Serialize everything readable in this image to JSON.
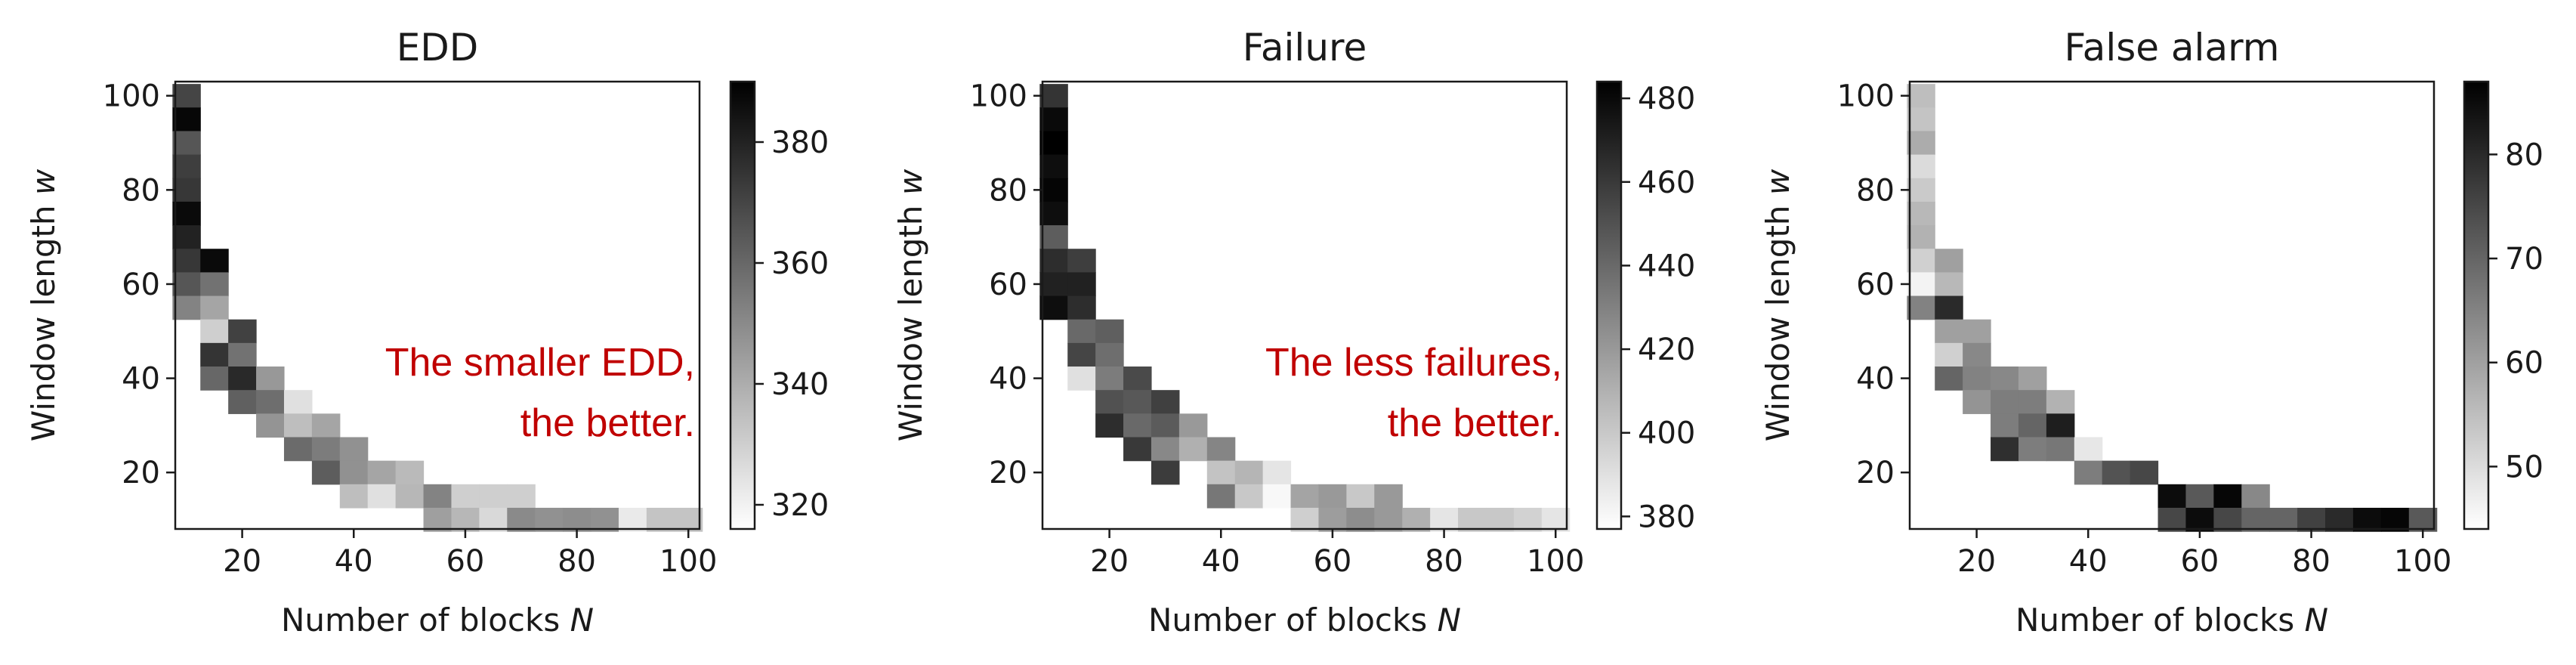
{
  "figure": {
    "colormap": "gray_r",
    "text_color": "#1a1a1a",
    "annotation_color": "#c00000"
  },
  "chart_data": [
    {
      "type": "heatmap",
      "title": "EDD",
      "xlabel": "Number of blocks N",
      "ylabel": "Window length w",
      "xlim": [
        8,
        102
      ],
      "ylim": [
        8,
        103
      ],
      "xticks": [
        20,
        40,
        60,
        80,
        100
      ],
      "yticks": [
        20,
        40,
        60,
        80,
        100
      ],
      "cell_size": 5,
      "colorbar": {
        "min": 316,
        "max": 390,
        "ticks": [
          320,
          340,
          360,
          380
        ]
      },
      "annotation": [
        "The smaller EDD,",
        "the better."
      ],
      "cells": [
        [
          10,
          100,
          370
        ],
        [
          10,
          95,
          388
        ],
        [
          10,
          90,
          365
        ],
        [
          10,
          85,
          372
        ],
        [
          10,
          80,
          374
        ],
        [
          10,
          75,
          387
        ],
        [
          10,
          70,
          380
        ],
        [
          10,
          65,
          374
        ],
        [
          10,
          60,
          365
        ],
        [
          15,
          65,
          387
        ],
        [
          10,
          55,
          352
        ],
        [
          15,
          60,
          357
        ],
        [
          15,
          55,
          342
        ],
        [
          15,
          50,
          330
        ],
        [
          15,
          45,
          375
        ],
        [
          20,
          50,
          371
        ],
        [
          15,
          40,
          360
        ],
        [
          20,
          45,
          357
        ],
        [
          20,
          40,
          378
        ],
        [
          25,
          40,
          346
        ],
        [
          20,
          35,
          362
        ],
        [
          25,
          35,
          358
        ],
        [
          30,
          35,
          325
        ],
        [
          25,
          30,
          347
        ],
        [
          30,
          30,
          335
        ],
        [
          35,
          30,
          342
        ],
        [
          30,
          25,
          359
        ],
        [
          35,
          25,
          354
        ],
        [
          40,
          25,
          348
        ],
        [
          35,
          20,
          363
        ],
        [
          40,
          20,
          348
        ],
        [
          45,
          20,
          342
        ],
        [
          50,
          20,
          336
        ],
        [
          40,
          15,
          335
        ],
        [
          45,
          15,
          325
        ],
        [
          50,
          15,
          337
        ],
        [
          55,
          15,
          352
        ],
        [
          60,
          15,
          330
        ],
        [
          65,
          15,
          330
        ],
        [
          70,
          15,
          330
        ],
        [
          55,
          10,
          344
        ],
        [
          60,
          10,
          337
        ],
        [
          65,
          10,
          327
        ],
        [
          70,
          10,
          350
        ],
        [
          75,
          10,
          348
        ],
        [
          80,
          10,
          349
        ],
        [
          85,
          10,
          348
        ],
        [
          90,
          10,
          322
        ],
        [
          95,
          10,
          333
        ],
        [
          100,
          10,
          333
        ]
      ]
    },
    {
      "type": "heatmap",
      "title": "Failure",
      "xlabel": "Number of blocks N",
      "ylabel": "Window length w",
      "xlim": [
        8,
        102
      ],
      "ylim": [
        8,
        103
      ],
      "xticks": [
        20,
        40,
        60,
        80,
        100
      ],
      "yticks": [
        20,
        40,
        60,
        80,
        100
      ],
      "cell_size": 5,
      "colorbar": {
        "min": 377,
        "max": 484,
        "ticks": [
          380,
          400,
          420,
          440,
          460,
          480
        ]
      },
      "annotation": [
        "The less failures,",
        "the better."
      ],
      "cells": [
        [
          10,
          100,
          462
        ],
        [
          10,
          95,
          480
        ],
        [
          10,
          90,
          484
        ],
        [
          10,
          85,
          478
        ],
        [
          10,
          80,
          482
        ],
        [
          10,
          75,
          478
        ],
        [
          10,
          70,
          445
        ],
        [
          10,
          65,
          465
        ],
        [
          10,
          60,
          470
        ],
        [
          15,
          65,
          458
        ],
        [
          10,
          55,
          478
        ],
        [
          15,
          60,
          470
        ],
        [
          15,
          55,
          465
        ],
        [
          15,
          50,
          440
        ],
        [
          15,
          45,
          455
        ],
        [
          20,
          50,
          444
        ],
        [
          15,
          40,
          390
        ],
        [
          20,
          45,
          438
        ],
        [
          20,
          40,
          432
        ],
        [
          25,
          40,
          453
        ],
        [
          20,
          35,
          450
        ],
        [
          25,
          35,
          447
        ],
        [
          30,
          35,
          457
        ],
        [
          20,
          30,
          465
        ],
        [
          25,
          30,
          440
        ],
        [
          30,
          30,
          446
        ],
        [
          35,
          30,
          420
        ],
        [
          25,
          25,
          460
        ],
        [
          30,
          25,
          427
        ],
        [
          35,
          25,
          410
        ],
        [
          40,
          25,
          428
        ],
        [
          30,
          20,
          459
        ],
        [
          40,
          20,
          402
        ],
        [
          45,
          20,
          408
        ],
        [
          50,
          20,
          388
        ],
        [
          40,
          15,
          434
        ],
        [
          45,
          15,
          400
        ],
        [
          50,
          15,
          380
        ],
        [
          55,
          15,
          415
        ],
        [
          60,
          15,
          420
        ],
        [
          65,
          15,
          400
        ],
        [
          70,
          15,
          420
        ],
        [
          55,
          10,
          397
        ],
        [
          60,
          10,
          418
        ],
        [
          65,
          10,
          425
        ],
        [
          70,
          10,
          420
        ],
        [
          75,
          10,
          410
        ],
        [
          80,
          10,
          388
        ],
        [
          85,
          10,
          400
        ],
        [
          90,
          10,
          400
        ],
        [
          95,
          10,
          396
        ],
        [
          100,
          10,
          388
        ]
      ]
    },
    {
      "type": "heatmap",
      "title": "False alarm",
      "xlabel": "Number of blocks N",
      "ylabel": "Window length w",
      "xlim": [
        8,
        102
      ],
      "ylim": [
        8,
        103
      ],
      "xticks": [
        20,
        40,
        60,
        80,
        100
      ],
      "yticks": [
        20,
        40,
        60,
        80,
        100
      ],
      "cell_size": 5,
      "colorbar": {
        "min": 44,
        "max": 87,
        "ticks": [
          50,
          60,
          70,
          80
        ]
      },
      "annotation": [],
      "cells": [
        [
          10,
          100,
          55
        ],
        [
          10,
          95,
          54
        ],
        [
          10,
          90,
          58
        ],
        [
          10,
          85,
          50
        ],
        [
          10,
          80,
          53
        ],
        [
          10,
          75,
          56
        ],
        [
          10,
          70,
          57
        ],
        [
          10,
          65,
          52
        ],
        [
          10,
          60,
          46
        ],
        [
          15,
          65,
          60
        ],
        [
          10,
          55,
          65
        ],
        [
          15,
          60,
          56
        ],
        [
          15,
          55,
          80
        ],
        [
          15,
          50,
          60
        ],
        [
          15,
          45,
          52
        ],
        [
          20,
          50,
          60
        ],
        [
          15,
          40,
          70
        ],
        [
          20,
          45,
          64
        ],
        [
          20,
          40,
          65
        ],
        [
          25,
          40,
          64
        ],
        [
          30,
          40,
          60
        ],
        [
          20,
          35,
          62
        ],
        [
          25,
          35,
          66
        ],
        [
          30,
          35,
          66
        ],
        [
          35,
          35,
          57
        ],
        [
          25,
          30,
          66
        ],
        [
          30,
          30,
          70
        ],
        [
          35,
          30,
          82
        ],
        [
          25,
          25,
          79
        ],
        [
          30,
          25,
          66
        ],
        [
          35,
          25,
          67
        ],
        [
          40,
          25,
          48
        ],
        [
          40,
          20,
          66
        ],
        [
          45,
          20,
          73
        ],
        [
          50,
          20,
          75
        ],
        [
          55,
          15,
          85
        ],
        [
          60,
          15,
          72
        ],
        [
          65,
          15,
          86
        ],
        [
          70,
          15,
          64
        ],
        [
          55,
          10,
          75
        ],
        [
          60,
          10,
          85
        ],
        [
          65,
          10,
          75
        ],
        [
          70,
          10,
          70
        ],
        [
          75,
          10,
          70
        ],
        [
          80,
          10,
          76
        ],
        [
          85,
          10,
          80
        ],
        [
          90,
          10,
          85
        ],
        [
          95,
          10,
          86
        ],
        [
          100,
          10,
          72
        ]
      ]
    }
  ]
}
